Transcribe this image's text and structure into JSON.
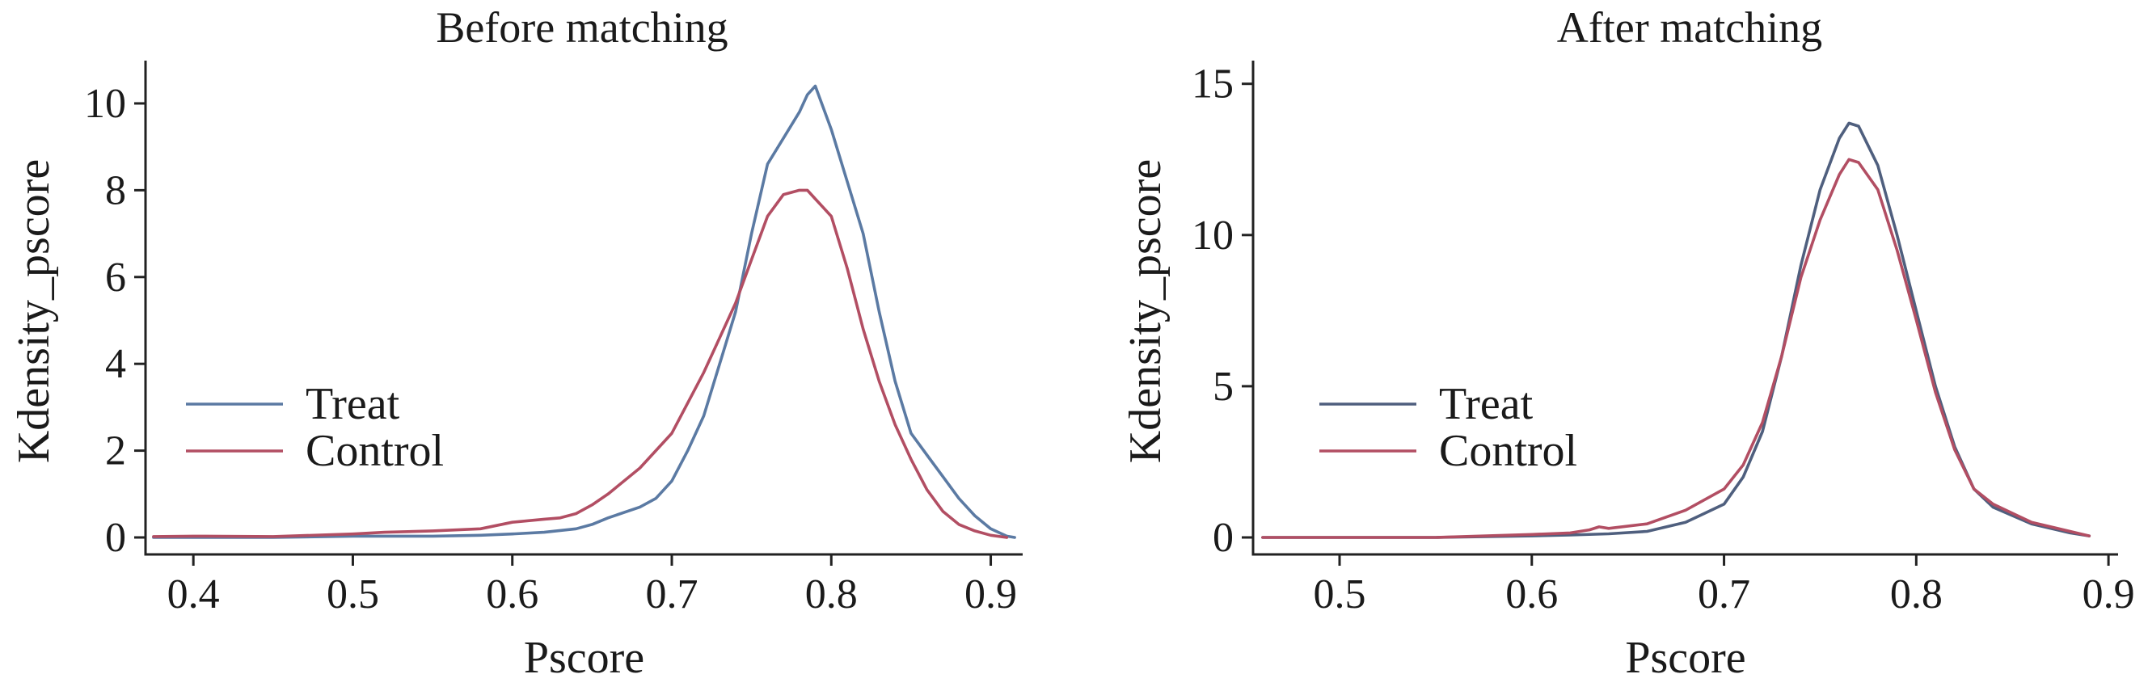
{
  "chart_data": [
    {
      "type": "line",
      "title": "Before matching",
      "xlabel": "Pscore",
      "ylabel": "Kdensity_pscore",
      "xlim": [
        0.37,
        0.92
      ],
      "ylim": [
        0,
        10.8
      ],
      "xticks": [
        0.4,
        0.5,
        0.6,
        0.7,
        0.8,
        0.9
      ],
      "xtick_labels": [
        "0.4",
        "0.5",
        "0.6",
        "0.7",
        "0.8",
        "0.9"
      ],
      "yticks": [
        0,
        2,
        4,
        6,
        8,
        10
      ],
      "ytick_labels": [
        "0",
        "2",
        "4",
        "6",
        "8",
        "10"
      ],
      "grid": false,
      "legend_position": "middle-left",
      "series": [
        {
          "name": "Treat",
          "color": "#5b7aa3",
          "x": [
            0.375,
            0.4,
            0.45,
            0.5,
            0.55,
            0.58,
            0.6,
            0.62,
            0.64,
            0.65,
            0.66,
            0.68,
            0.69,
            0.7,
            0.71,
            0.72,
            0.73,
            0.74,
            0.75,
            0.76,
            0.77,
            0.78,
            0.785,
            0.79,
            0.8,
            0.81,
            0.82,
            0.83,
            0.84,
            0.85,
            0.86,
            0.87,
            0.88,
            0.89,
            0.9,
            0.91,
            0.915
          ],
          "y": [
            0.0,
            0.0,
            0.0,
            0.03,
            0.03,
            0.05,
            0.08,
            0.12,
            0.2,
            0.3,
            0.45,
            0.7,
            0.9,
            1.3,
            2.0,
            2.8,
            4.0,
            5.2,
            7.0,
            8.6,
            9.2,
            9.8,
            10.2,
            10.4,
            9.4,
            8.2,
            7.0,
            5.2,
            3.6,
            2.4,
            1.9,
            1.4,
            0.9,
            0.5,
            0.2,
            0.03,
            0.0
          ]
        },
        {
          "name": "Control",
          "color": "#b24e63",
          "x": [
            0.375,
            0.4,
            0.45,
            0.5,
            0.52,
            0.55,
            0.58,
            0.6,
            0.62,
            0.63,
            0.64,
            0.65,
            0.66,
            0.68,
            0.7,
            0.72,
            0.74,
            0.75,
            0.76,
            0.77,
            0.78,
            0.785,
            0.79,
            0.8,
            0.81,
            0.82,
            0.83,
            0.84,
            0.85,
            0.86,
            0.87,
            0.88,
            0.89,
            0.9,
            0.91
          ],
          "y": [
            0.02,
            0.03,
            0.02,
            0.08,
            0.12,
            0.15,
            0.2,
            0.35,
            0.42,
            0.45,
            0.55,
            0.75,
            1.0,
            1.6,
            2.4,
            3.8,
            5.4,
            6.4,
            7.4,
            7.9,
            8.0,
            8.0,
            7.8,
            7.4,
            6.2,
            4.8,
            3.6,
            2.6,
            1.8,
            1.1,
            0.6,
            0.3,
            0.15,
            0.05,
            0.0
          ]
        }
      ]
    },
    {
      "type": "line",
      "title": "After matching",
      "xlabel": "Pscore",
      "ylabel": "Kdensity_pscore",
      "xlim": [
        0.455,
        0.905
      ],
      "ylim": [
        0,
        15.5
      ],
      "xticks": [
        0.5,
        0.6,
        0.7,
        0.8,
        0.9
      ],
      "xtick_labels": [
        "0.5",
        "0.6",
        "0.7",
        "0.8",
        "0.9"
      ],
      "yticks": [
        0,
        5,
        10,
        15
      ],
      "ytick_labels": [
        "0",
        "5",
        "10",
        "15"
      ],
      "grid": false,
      "legend_position": "middle-left",
      "series": [
        {
          "name": "Treat",
          "color": "#4f5f7e",
          "x": [
            0.46,
            0.5,
            0.55,
            0.6,
            0.62,
            0.64,
            0.66,
            0.68,
            0.7,
            0.71,
            0.72,
            0.73,
            0.74,
            0.75,
            0.76,
            0.765,
            0.77,
            0.78,
            0.79,
            0.8,
            0.81,
            0.82,
            0.83,
            0.84,
            0.86,
            0.88,
            0.89
          ],
          "y": [
            0.0,
            0.0,
            0.0,
            0.05,
            0.08,
            0.12,
            0.2,
            0.5,
            1.1,
            2.0,
            3.5,
            6.0,
            9.0,
            11.5,
            13.2,
            13.7,
            13.6,
            12.3,
            10.0,
            7.5,
            5.0,
            3.0,
            1.6,
            1.0,
            0.45,
            0.15,
            0.05
          ]
        },
        {
          "name": "Control",
          "color": "#b24e63",
          "x": [
            0.46,
            0.5,
            0.55,
            0.6,
            0.62,
            0.63,
            0.635,
            0.64,
            0.66,
            0.68,
            0.7,
            0.71,
            0.72,
            0.73,
            0.74,
            0.75,
            0.76,
            0.765,
            0.77,
            0.78,
            0.79,
            0.8,
            0.81,
            0.82,
            0.83,
            0.84,
            0.86,
            0.88,
            0.89
          ],
          "y": [
            0.0,
            0.0,
            0.0,
            0.1,
            0.15,
            0.25,
            0.35,
            0.3,
            0.45,
            0.9,
            1.6,
            2.4,
            3.8,
            6.0,
            8.6,
            10.5,
            12.0,
            12.5,
            12.4,
            11.5,
            9.5,
            7.2,
            4.8,
            2.9,
            1.6,
            1.1,
            0.5,
            0.2,
            0.05
          ]
        }
      ]
    }
  ]
}
